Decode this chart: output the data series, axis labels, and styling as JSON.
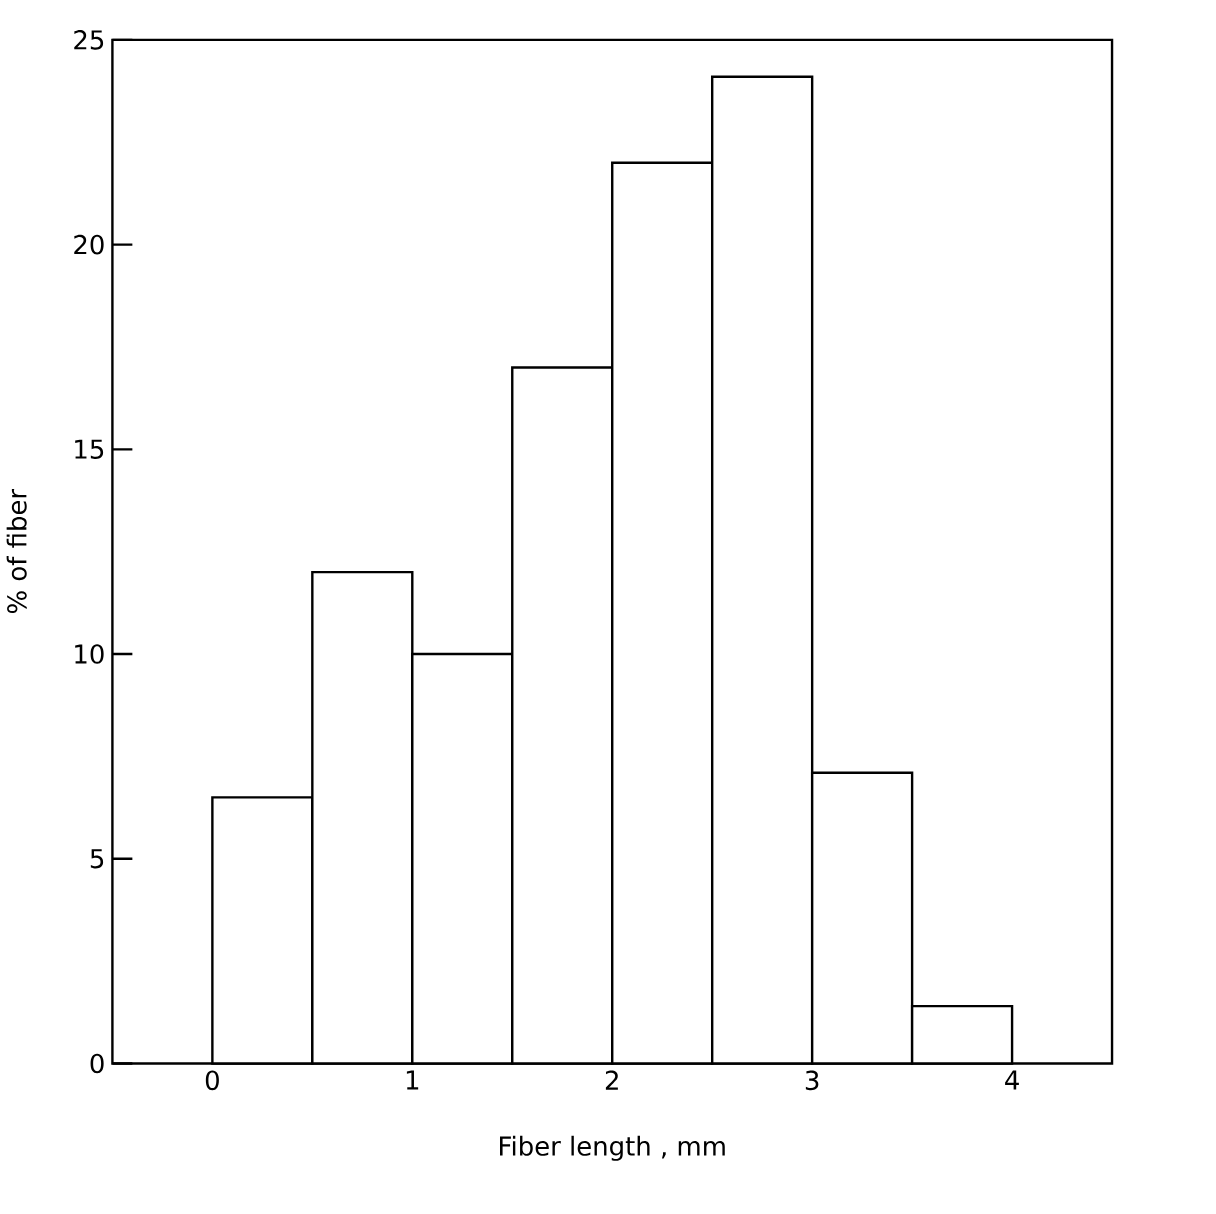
{
  "chart_data": {
    "type": "histogram",
    "xlabel": "Fiber length , mm",
    "ylabel": "% of fiber",
    "bins": [
      0,
      0.5,
      1,
      1.5,
      2,
      2.5,
      3,
      3.5,
      4
    ],
    "values": [
      6.5,
      12,
      10,
      17,
      22,
      24.1,
      7.1,
      1.4
    ],
    "color": "#000000",
    "xlim": [
      -0.5,
      4.5
    ],
    "ylim": [
      0,
      25
    ],
    "xticks": [
      0,
      1,
      2,
      3,
      4
    ],
    "yticks": [
      0,
      5,
      10,
      15,
      20,
      25
    ]
  }
}
